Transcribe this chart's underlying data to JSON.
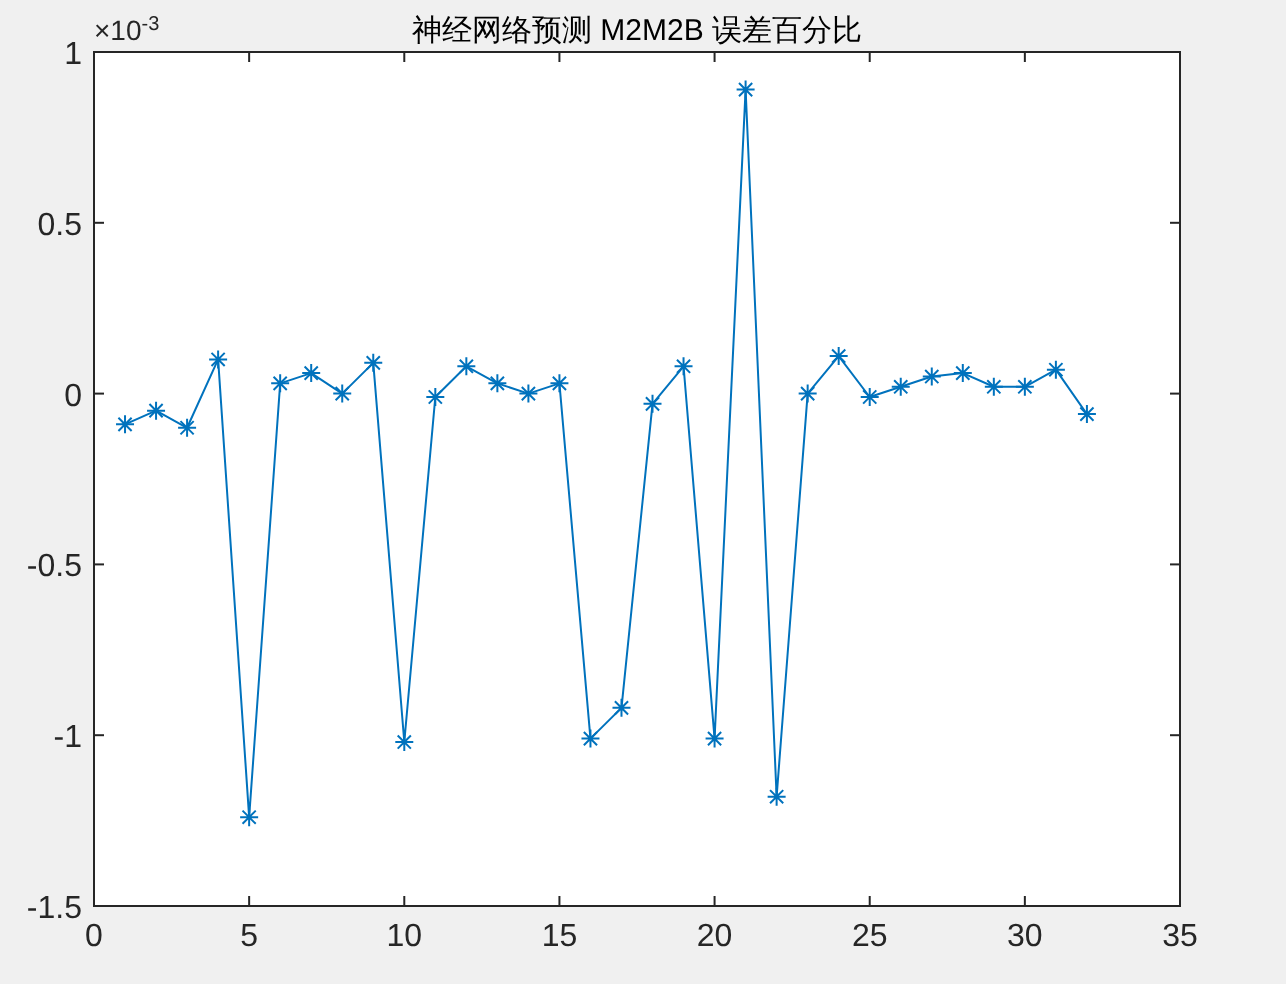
{
  "chart_data": {
    "type": "line",
    "title": "神经网络预测 M2M2B 误差百分比",
    "annotations": [
      "×10$^{-3}$"
    ],
    "x": [
      1,
      2,
      3,
      4,
      5,
      6,
      7,
      8,
      9,
      10,
      11,
      12,
      13,
      14,
      15,
      16,
      17,
      18,
      19,
      20,
      21,
      22,
      23,
      24,
      25,
      26,
      27,
      28,
      29,
      30,
      31,
      32
    ],
    "series": [
      {
        "color": "#0072bd",
        "values": [
          -0.09,
          -0.05,
          -0.1,
          0.1,
          -1.24,
          0.03,
          0.06,
          0.0,
          0.09,
          -1.02,
          -0.01,
          0.08,
          0.03,
          0.0,
          0.03,
          -1.01,
          -0.92,
          -0.03,
          0.08,
          -1.01,
          0.89,
          -1.18,
          0.0,
          0.11,
          -0.01,
          0.02,
          0.05,
          0.06,
          0.02,
          0.02,
          0.07,
          -0.06
        ]
      }
    ],
    "xlim": [
      0,
      35
    ],
    "xticks": [
      0,
      5,
      10,
      15,
      20,
      25,
      30,
      35
    ],
    "ylim": [
      -1.5,
      1
    ],
    "yticks": [
      -1.5,
      -1,
      -0.5,
      0,
      0.5,
      1
    ],
    "grid": false,
    "marker": "cross",
    "line_style": "solid"
  }
}
